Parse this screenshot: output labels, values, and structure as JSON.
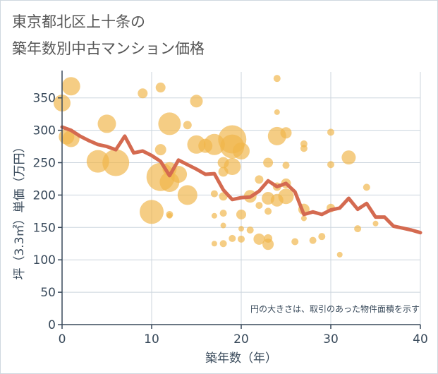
{
  "title_lines": [
    "東京都北区上十条の",
    "築年数別中古マンション価格"
  ],
  "chart_data": {
    "type": "scatter",
    "title": "東京都北区上十条の 築年数別中古マンション価格",
    "xlabel": "築年数（年）",
    "ylabel": "坪（3.3㎡）単価（万円）",
    "xlim": [
      0,
      40
    ],
    "ylim": [
      0,
      390
    ],
    "xticks": [
      0,
      10,
      20,
      30,
      40
    ],
    "yticks": [
      0,
      50,
      100,
      150,
      200,
      250,
      300,
      350
    ],
    "grid": true,
    "annotation": "円の大きさは、取引のあった物件面積を示す",
    "colors": {
      "bubble": "#f0b54a",
      "line": "#d46a50",
      "axis": "#38495a",
      "grid": "#ccd5de"
    },
    "series": [
      {
        "type": "bubble",
        "points": [
          {
            "x": 0,
            "y": 342,
            "s": 12
          },
          {
            "x": 1,
            "y": 368,
            "s": 13
          },
          {
            "x": 0.5,
            "y": 290,
            "s": 11
          },
          {
            "x": 1,
            "y": 287,
            "s": 12
          },
          {
            "x": 5,
            "y": 310,
            "s": 13
          },
          {
            "x": 4,
            "y": 252,
            "s": 16
          },
          {
            "x": 6,
            "y": 250,
            "s": 19
          },
          {
            "x": 9,
            "y": 357,
            "s": 7
          },
          {
            "x": 11,
            "y": 366,
            "s": 7
          },
          {
            "x": 11,
            "y": 270,
            "s": 8
          },
          {
            "x": 10,
            "y": 174,
            "s": 17
          },
          {
            "x": 11,
            "y": 228,
            "s": 20
          },
          {
            "x": 12,
            "y": 310,
            "s": 16
          },
          {
            "x": 12,
            "y": 220,
            "s": 14
          },
          {
            "x": 12,
            "y": 240,
            "s": 10
          },
          {
            "x": 13,
            "y": 232,
            "s": 12
          },
          {
            "x": 14,
            "y": 200,
            "s": 14
          },
          {
            "x": 14,
            "y": 308,
            "s": 6
          },
          {
            "x": 12,
            "y": 170,
            "s": 5
          },
          {
            "x": 12,
            "y": 168,
            "s": 4
          },
          {
            "x": 15,
            "y": 345,
            "s": 9
          },
          {
            "x": 15,
            "y": 278,
            "s": 13
          },
          {
            "x": 16,
            "y": 276,
            "s": 10
          },
          {
            "x": 17,
            "y": 278,
            "s": 15
          },
          {
            "x": 17,
            "y": 202,
            "s": 5
          },
          {
            "x": 17,
            "y": 168,
            "s": 4
          },
          {
            "x": 17,
            "y": 125,
            "s": 4
          },
          {
            "x": 18,
            "y": 125,
            "s": 5
          },
          {
            "x": 18,
            "y": 153,
            "s": 4
          },
          {
            "x": 18,
            "y": 172,
            "s": 5
          },
          {
            "x": 18,
            "y": 198,
            "s": 6
          },
          {
            "x": 18,
            "y": 236,
            "s": 7
          },
          {
            "x": 18,
            "y": 250,
            "s": 8
          },
          {
            "x": 19,
            "y": 286,
            "s": 20
          },
          {
            "x": 19,
            "y": 275,
            "s": 17
          },
          {
            "x": 19,
            "y": 244,
            "s": 12
          },
          {
            "x": 19,
            "y": 133,
            "s": 5
          },
          {
            "x": 20,
            "y": 132,
            "s": 5
          },
          {
            "x": 20,
            "y": 148,
            "s": 4
          },
          {
            "x": 20,
            "y": 170,
            "s": 7
          },
          {
            "x": 20,
            "y": 268,
            "s": 12
          },
          {
            "x": 21,
            "y": 146,
            "s": 5
          },
          {
            "x": 21,
            "y": 198,
            "s": 9
          },
          {
            "x": 22,
            "y": 132,
            "s": 8
          },
          {
            "x": 22,
            "y": 184,
            "s": 5
          },
          {
            "x": 22,
            "y": 224,
            "s": 6
          },
          {
            "x": 23,
            "y": 124,
            "s": 8
          },
          {
            "x": 23,
            "y": 133,
            "s": 6
          },
          {
            "x": 23,
            "y": 175,
            "s": 5
          },
          {
            "x": 23,
            "y": 195,
            "s": 9
          },
          {
            "x": 23,
            "y": 250,
            "s": 7
          },
          {
            "x": 24,
            "y": 380,
            "s": 5
          },
          {
            "x": 24,
            "y": 328,
            "s": 4
          },
          {
            "x": 24,
            "y": 291,
            "s": 13
          },
          {
            "x": 24,
            "y": 192,
            "s": 9
          },
          {
            "x": 24,
            "y": 213,
            "s": 6
          },
          {
            "x": 25,
            "y": 296,
            "s": 8
          },
          {
            "x": 25,
            "y": 246,
            "s": 5
          },
          {
            "x": 25,
            "y": 218,
            "s": 7
          },
          {
            "x": 25,
            "y": 198,
            "s": 11
          },
          {
            "x": 26,
            "y": 128,
            "s": 5
          },
          {
            "x": 27,
            "y": 279,
            "s": 5
          },
          {
            "x": 27,
            "y": 272,
            "s": 5
          },
          {
            "x": 27,
            "y": 178,
            "s": 8
          },
          {
            "x": 27,
            "y": 164,
            "s": 4
          },
          {
            "x": 28,
            "y": 130,
            "s": 5
          },
          {
            "x": 29,
            "y": 136,
            "s": 5
          },
          {
            "x": 30,
            "y": 297,
            "s": 5
          },
          {
            "x": 30,
            "y": 247,
            "s": 5
          },
          {
            "x": 30,
            "y": 180,
            "s": 6
          },
          {
            "x": 31,
            "y": 108,
            "s": 4
          },
          {
            "x": 32,
            "y": 258,
            "s": 10
          },
          {
            "x": 33,
            "y": 148,
            "s": 5
          },
          {
            "x": 34,
            "y": 212,
            "s": 5
          },
          {
            "x": 35,
            "y": 156,
            "s": 4
          }
        ]
      },
      {
        "type": "line",
        "points": [
          [
            0,
            305
          ],
          [
            1,
            300
          ],
          [
            2,
            291
          ],
          [
            3,
            284
          ],
          [
            4,
            278
          ],
          [
            5,
            275
          ],
          [
            6,
            270
          ],
          [
            7,
            291
          ],
          [
            8,
            265
          ],
          [
            9,
            268
          ],
          [
            10,
            261
          ],
          [
            11,
            252
          ],
          [
            12,
            230
          ],
          [
            13,
            254
          ],
          [
            14,
            247
          ],
          [
            15,
            240
          ],
          [
            16,
            232
          ],
          [
            17,
            233
          ],
          [
            18,
            208
          ],
          [
            19,
            193
          ],
          [
            20,
            196
          ],
          [
            21,
            197
          ],
          [
            22,
            206
          ],
          [
            23,
            222
          ],
          [
            24,
            213
          ],
          [
            25,
            218
          ],
          [
            26,
            205
          ],
          [
            27,
            170
          ],
          [
            28,
            174
          ],
          [
            29,
            170
          ],
          [
            30,
            177
          ],
          [
            31,
            180
          ],
          [
            32,
            195
          ],
          [
            33,
            178
          ],
          [
            34,
            187
          ],
          [
            35,
            166
          ],
          [
            36,
            166
          ],
          [
            37,
            152
          ],
          [
            38,
            149
          ],
          [
            39,
            146
          ],
          [
            40,
            142
          ]
        ]
      }
    ]
  }
}
